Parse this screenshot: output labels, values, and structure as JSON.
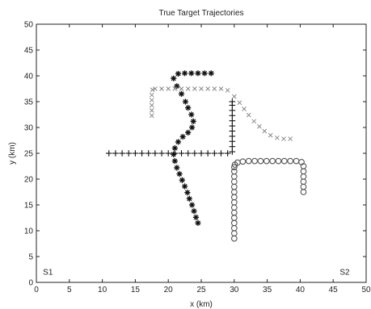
{
  "chart_data": {
    "type": "scatter",
    "title": "True Target Trajectories",
    "xlabel": "x (km)",
    "ylabel": "y (km)",
    "xlim": [
      0,
      50
    ],
    "ylim": [
      0,
      50
    ],
    "xticks": [
      0,
      5,
      10,
      15,
      20,
      25,
      30,
      35,
      40,
      45,
      50
    ],
    "yticks": [
      0,
      5,
      10,
      15,
      20,
      25,
      30,
      35,
      40,
      45,
      50
    ],
    "grid": false,
    "annotations": [
      {
        "text": "S1",
        "x": 1,
        "y": 1.5
      },
      {
        "text": "S2",
        "x": 46,
        "y": 1.5
      }
    ],
    "colors": {
      "asterisk": "#111111",
      "plus": "#111111",
      "cross": "#8a8a8a",
      "circle": "#555555"
    },
    "series": [
      {
        "marker": "asterisk",
        "x": [
          26.5,
          25.5,
          24.5,
          23.5,
          22.5,
          21.5,
          20.8,
          21.3,
          22.0,
          22.6,
          23.0,
          23.5,
          23.8,
          23.6,
          23.0,
          22.2,
          21.5,
          21.0,
          20.8,
          21.0,
          21.3,
          21.7,
          22.1,
          22.5,
          22.9,
          23.2,
          23.6,
          23.9,
          24.2,
          24.5
        ],
        "y": [
          40.5,
          40.5,
          40.5,
          40.5,
          40.5,
          40.4,
          39.5,
          38.0,
          36.5,
          35.0,
          33.8,
          32.5,
          31.2,
          30.0,
          29.0,
          28.2,
          27.2,
          26.0,
          24.8,
          23.5,
          22.2,
          21.0,
          19.8,
          18.6,
          17.4,
          16.2,
          15.0,
          13.8,
          12.6,
          11.5
        ]
      },
      {
        "marker": "plus",
        "x": [
          11.0,
          12.0,
          13.0,
          14.0,
          15.0,
          16.0,
          17.0,
          18.0,
          19.0,
          20.0,
          21.0,
          22.0,
          23.0,
          24.0,
          25.0,
          26.0,
          27.0,
          28.0,
          29.0,
          29.7,
          29.7,
          29.7,
          29.7,
          29.7,
          29.7,
          29.7,
          29.7,
          29.7,
          29.7,
          29.7
        ],
        "y": [
          25.0,
          25.0,
          25.0,
          25.0,
          25.0,
          25.0,
          25.0,
          25.0,
          25.0,
          25.0,
          25.0,
          25.0,
          25.0,
          25.0,
          25.0,
          25.0,
          25.0,
          25.0,
          25.0,
          25.3,
          26.3,
          27.3,
          28.3,
          29.3,
          30.3,
          31.3,
          32.3,
          33.3,
          34.3,
          35.0
        ]
      },
      {
        "marker": "cross",
        "x": [
          17.5,
          17.5,
          17.5,
          17.5,
          17.5,
          17.6,
          18.0,
          19.0,
          20.0,
          21.0,
          22.0,
          23.0,
          24.0,
          25.0,
          26.0,
          27.0,
          28.0,
          29.0,
          30.0,
          30.8,
          31.5,
          32.2,
          33.0,
          33.8,
          34.6,
          35.5,
          36.5,
          37.5,
          38.5
        ],
        "y": [
          32.3,
          33.3,
          34.3,
          35.3,
          36.3,
          37.3,
          37.5,
          37.5,
          37.5,
          37.5,
          37.5,
          37.5,
          37.5,
          37.5,
          37.5,
          37.5,
          37.5,
          37.2,
          36.0,
          34.8,
          33.6,
          32.4,
          31.2,
          30.2,
          29.3,
          28.5,
          28.0,
          27.8,
          27.8
        ]
      },
      {
        "marker": "circle",
        "x": [
          30.0,
          30.0,
          30.0,
          30.0,
          30.0,
          30.0,
          30.0,
          30.0,
          30.0,
          30.0,
          30.0,
          30.0,
          30.0,
          30.0,
          30.0,
          30.1,
          30.5,
          31.3,
          32.2,
          33.1,
          34.0,
          34.9,
          35.8,
          36.7,
          37.6,
          38.5,
          39.4,
          40.2,
          40.5,
          40.5,
          40.5,
          40.5,
          40.5,
          40.5
        ],
        "y": [
          8.5,
          9.5,
          10.5,
          11.5,
          12.5,
          13.5,
          14.5,
          15.5,
          16.5,
          17.5,
          18.5,
          19.5,
          20.5,
          21.5,
          22.3,
          22.8,
          23.2,
          23.4,
          23.5,
          23.5,
          23.5,
          23.5,
          23.5,
          23.5,
          23.5,
          23.5,
          23.5,
          23.3,
          22.5,
          21.5,
          20.5,
          19.5,
          18.5,
          17.5
        ]
      }
    ]
  }
}
